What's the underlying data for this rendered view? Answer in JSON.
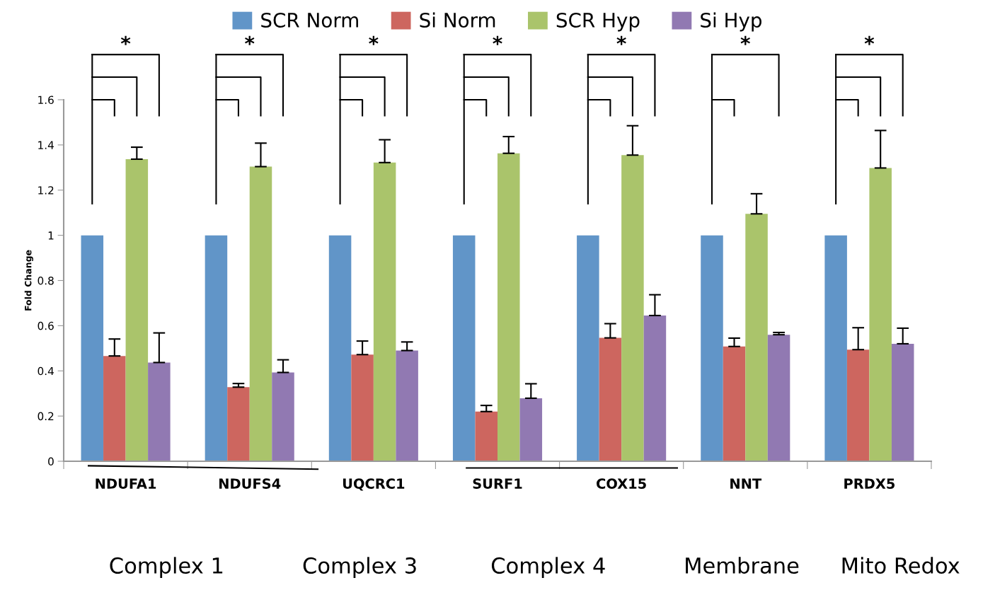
{
  "chart_data": {
    "type": "bar",
    "ylabel": "Fold Change",
    "categories": [
      "NDUFA1",
      "NDUFS4",
      "UQCRC1",
      "SURF1",
      "COX15",
      "NNT",
      "PRDX5"
    ],
    "series": [
      {
        "name": "SCR Norm",
        "color": "#6195c8",
        "values": [
          1,
          1,
          1,
          1,
          1,
          1,
          1
        ]
      },
      {
        "name": "Si Norm",
        "color": "#cd665f",
        "values": [
          0.466,
          0.328,
          0.472,
          0.22,
          0.546,
          0.508,
          0.494
        ],
        "errors": [
          [
            0.466,
            0.541
          ],
          [
            0.328,
            0.344
          ],
          [
            0.472,
            0.532
          ],
          [
            0.22,
            0.247
          ],
          [
            0.546,
            0.609
          ],
          [
            0.508,
            0.545
          ],
          [
            0.494,
            0.591
          ]
        ]
      },
      {
        "name": "SCR Hyp",
        "color": "#aac46b",
        "values": [
          1.337,
          1.304,
          1.322,
          1.363,
          1.355,
          1.095,
          1.298
        ],
        "errors": [
          [
            1.337,
            1.39
          ],
          [
            1.304,
            1.408
          ],
          [
            1.322,
            1.423
          ],
          [
            1.363,
            1.437
          ],
          [
            1.355,
            1.485
          ],
          [
            1.095,
            1.184
          ],
          [
            1.298,
            1.464
          ]
        ]
      },
      {
        "name": "Si Hyp",
        "color": "#9179b2",
        "values": [
          0.437,
          0.393,
          0.49,
          0.279,
          0.645,
          0.56,
          0.52
        ],
        "errors": [
          [
            0.437,
            0.568
          ],
          [
            0.393,
            0.449
          ],
          [
            0.49,
            0.528
          ],
          [
            0.279,
            0.343
          ],
          [
            0.645,
            0.737
          ],
          [
            0.56,
            0.57
          ],
          [
            0.52,
            0.589
          ]
        ]
      }
    ],
    "ylim": [
      0,
      1.6
    ],
    "yticks": [
      0,
      0.2,
      0.4,
      0.6,
      0.8,
      1,
      1.2,
      1.4,
      1.6
    ],
    "legend": "top",
    "annotations": [
      "*",
      "*",
      "*",
      "*",
      "*",
      "*",
      "*",
      "Complex 1",
      "Complex 3",
      "Complex 4",
      "Membrane",
      "Mito Redox"
    ]
  }
}
